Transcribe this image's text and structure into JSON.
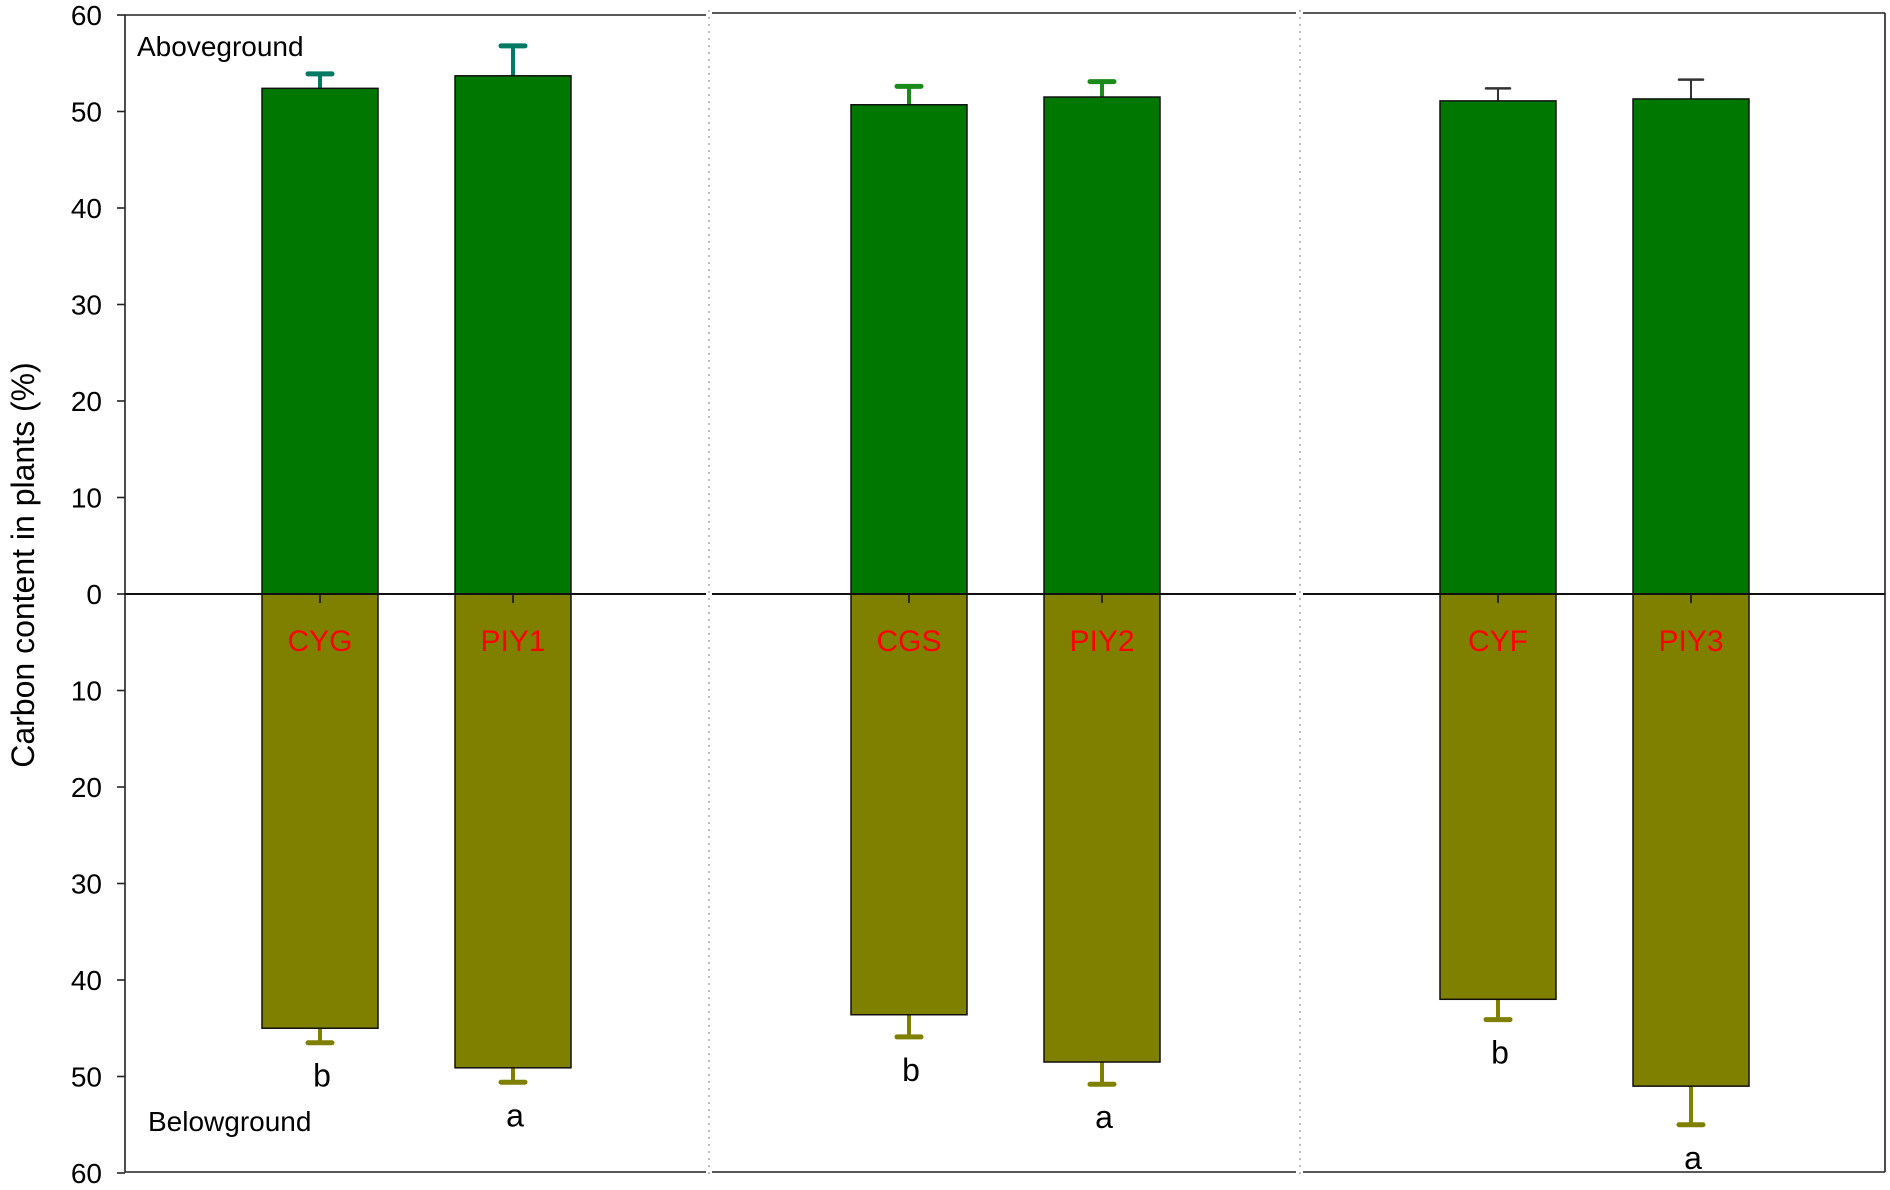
{
  "chart_data": {
    "type": "bar",
    "title": "",
    "xlabel": "",
    "ylabel": "Carbon content in plants (%)",
    "ylim": [
      -60,
      60
    ],
    "y_ticks": [
      "60",
      "50",
      "40",
      "30",
      "20",
      "10",
      "0",
      "10",
      "20",
      "30",
      "40",
      "50",
      "60"
    ],
    "grid": false,
    "annotations": {
      "top": "Aboveground",
      "bottom": "Belowground"
    },
    "categories": [
      "CYG",
      "PIY1",
      "CGS",
      "PIY2",
      "CYF",
      "PIY3"
    ],
    "panels": [
      [
        "CYG",
        "PIY1"
      ],
      [
        "CGS",
        "PIY2"
      ],
      [
        "CYF",
        "PIY3"
      ]
    ],
    "series": [
      {
        "name": "Aboveground",
        "color": "#007800",
        "values": [
          52.4,
          53.7,
          50.7,
          51.5,
          51.1,
          51.3
        ],
        "error": [
          1.5,
          3.1,
          1.9,
          1.6,
          1.3,
          2.0
        ],
        "error_colors": [
          "#007a64",
          "#007a64",
          "#1a8a1a",
          "#1a8a1a",
          "#333333",
          "#333333"
        ]
      },
      {
        "name": "Belowground",
        "color": "#808000",
        "values": [
          45.0,
          49.1,
          43.6,
          48.5,
          42.0,
          51.0
        ],
        "error": [
          1.5,
          1.5,
          2.3,
          2.3,
          2.1,
          4.0
        ],
        "significance": [
          "b",
          "a",
          "b",
          "a",
          "b",
          "a"
        ]
      }
    ],
    "category_label_color": "#ff0000"
  }
}
